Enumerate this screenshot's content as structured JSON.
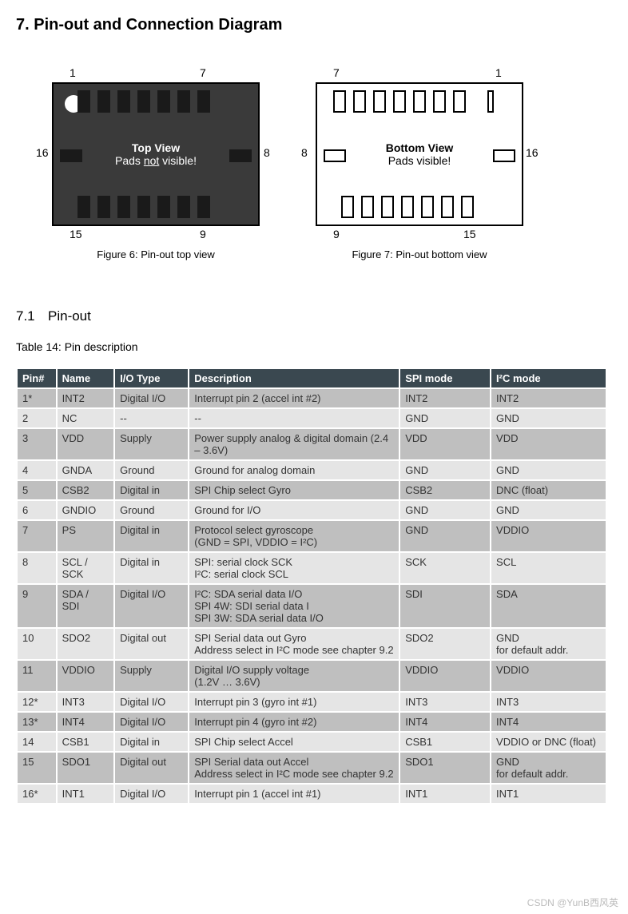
{
  "heading": "7.   Pin-out and Connection Diagram",
  "diagrams": {
    "top": {
      "title": "Top View",
      "subtitle_pre": "Pads ",
      "subtitle_u": "not",
      "subtitle_post": " visible!",
      "labels": {
        "tl": "1",
        "tr": "7",
        "bl": "15",
        "br": "9",
        "ml": "16",
        "mr": "8"
      },
      "caption": "Figure 6: Pin-out top view"
    },
    "bottom": {
      "title": "Bottom View",
      "subtitle": "Pads visible!",
      "labels": {
        "tl": "7",
        "tr": "1",
        "bl": "9",
        "br": "15",
        "ml": "8",
        "mr": "16"
      },
      "caption": "Figure 7: Pin-out bottom view"
    }
  },
  "subsection": {
    "num": "7.1",
    "title": "Pin-out"
  },
  "table_caption": "Table 14: Pin description",
  "table": {
    "columns": [
      "Pin#",
      "Name",
      "I/O Type",
      "Description",
      "SPI mode",
      "I²C mode"
    ],
    "rows": [
      [
        "1*",
        "INT2",
        "Digital I/O",
        "Interrupt pin 2 (accel int #2)",
        "INT2",
        "INT2"
      ],
      [
        "2",
        "NC",
        "--",
        "--",
        "GND",
        "GND"
      ],
      [
        "3",
        "VDD",
        "Supply",
        "Power supply analog & digital domain (2.4 – 3.6V)",
        "VDD",
        "VDD"
      ],
      [
        "4",
        "GNDA",
        "Ground",
        "Ground for analog domain",
        "GND",
        "GND"
      ],
      [
        "5",
        "CSB2",
        "Digital in",
        "SPI Chip select Gyro",
        "CSB2",
        "DNC (float)"
      ],
      [
        "6",
        "GNDIO",
        "Ground",
        "Ground for I/O",
        "GND",
        "GND"
      ],
      [
        "7",
        "PS",
        "Digital in",
        "Protocol select gyroscope\n(GND = SPI, VDDIO = I²C)",
        "GND",
        "VDDIO"
      ],
      [
        "8",
        "SCL / SCK",
        "Digital in",
        "SPI: serial clock SCK\nI²C: serial clock SCL",
        "SCK",
        "SCL"
      ],
      [
        "9",
        "SDA / SDI",
        "Digital I/O",
        "I²C: SDA serial data I/O\nSPI 4W: SDI serial data I\nSPI 3W: SDA serial data I/O",
        "SDI",
        "SDA"
      ],
      [
        "10",
        "SDO2",
        "Digital out",
        "SPI Serial data out Gyro\nAddress select in I²C mode see chapter 9.2",
        "SDO2",
        "GND\nfor default addr."
      ],
      [
        "11",
        "VDDIO",
        "Supply",
        "Digital I/O supply voltage\n(1.2V … 3.6V)",
        "VDDIO",
        "VDDIO"
      ],
      [
        "12*",
        "INT3",
        "Digital I/O",
        "Interrupt pin 3 (gyro int #1)",
        "INT3",
        "INT3"
      ],
      [
        "13*",
        "INT4",
        "Digital I/O",
        "Interrupt pin 4 (gyro int #2)",
        "INT4",
        "INT4"
      ],
      [
        "14",
        "CSB1",
        "Digital in",
        "SPI Chip select Accel",
        "CSB1",
        "VDDIO or DNC (float)"
      ],
      [
        "15",
        "SDO1",
        "Digital out",
        "SPI Serial data out Accel\nAddress select in I²C mode see chapter 9.2",
        "SDO1",
        "GND\nfor default addr."
      ],
      [
        "16*",
        "INT1",
        "Digital I/O",
        "Interrupt pin 1 (accel int #1)",
        "INT1",
        "INT1"
      ]
    ],
    "header_bg": "#3a4850",
    "row_colors": [
      "#bfbfbf",
      "#e5e5e5"
    ]
  },
  "watermark": "CSDN @YunB西风英"
}
